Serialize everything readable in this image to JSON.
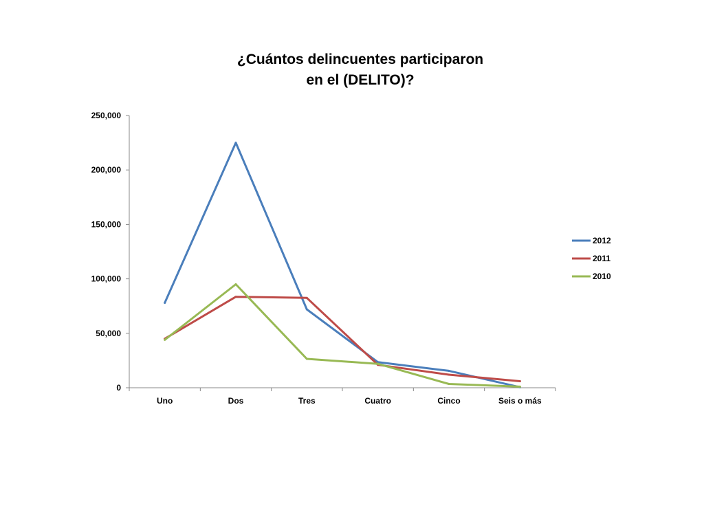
{
  "chart_data": {
    "type": "line",
    "title_lines": [
      "¿Cuántos delincuentes participaron",
      "en el (DELITO)?"
    ],
    "xlabel": "",
    "ylabel": "",
    "categories": [
      "Uno",
      "Dos",
      "Tres",
      "Cuatro",
      "Cinco",
      "Seis o más"
    ],
    "ylim": [
      0,
      250000
    ],
    "yticks": [
      0,
      50000,
      100000,
      150000,
      200000,
      250000
    ],
    "ytick_labels": [
      "0",
      "50,000",
      "100,000",
      "150,000",
      "200,000",
      "250,000"
    ],
    "grid": false,
    "legend_position": "right",
    "series": [
      {
        "name": "2012",
        "color": "#4a7ebb",
        "values": [
          78000,
          225000,
          72000,
          23500,
          15500,
          500
        ]
      },
      {
        "name": "2011",
        "color": "#be4b48",
        "values": [
          45000,
          83500,
          82500,
          21000,
          12000,
          6000
        ]
      },
      {
        "name": "2010",
        "color": "#98b954",
        "values": [
          44000,
          95000,
          26500,
          22000,
          3500,
          1000
        ]
      }
    ]
  }
}
